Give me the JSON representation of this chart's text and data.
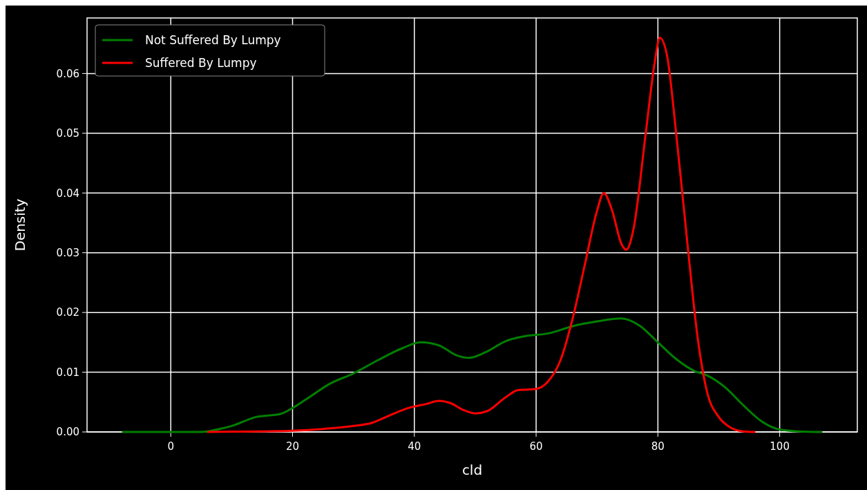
{
  "chart_data": {
    "type": "line",
    "xlabel": "cld",
    "ylabel": "Density",
    "xlim": [
      -13.75,
      112.75
    ],
    "xticks": [
      0,
      20,
      40,
      60,
      80,
      100
    ],
    "ylim": [
      0,
      0.0693
    ],
    "yticks": [
      {
        "value": 0,
        "label": "0.00"
      },
      {
        "value": 0.01,
        "label": "0.01"
      },
      {
        "value": 0.02,
        "label": "0.02"
      },
      {
        "value": 0.03,
        "label": "0.03"
      },
      {
        "value": 0.04,
        "label": "0.04"
      },
      {
        "value": 0.05,
        "label": "0.05"
      },
      {
        "value": 0.06,
        "label": "0.06"
      }
    ],
    "grid": true,
    "legend": "top left",
    "marker": "none",
    "line_style": "solid",
    "series": [
      {
        "name": "Not Suffered By Lumpy",
        "color": "#008000",
        "x": [
          -8,
          5,
          8,
          10,
          14,
          18,
          20,
          23,
          26,
          30,
          34,
          38,
          41,
          44,
          47,
          49,
          52,
          55,
          58,
          62,
          66,
          70,
          74,
          77,
          80,
          83,
          86,
          88,
          91,
          94,
          97,
          100,
          103,
          107
        ],
        "values": [
          0,
          0,
          0.0005,
          0.001,
          0.0025,
          0.003,
          0.004,
          0.006,
          0.008,
          0.0098,
          0.012,
          0.014,
          0.015,
          0.0145,
          0.0128,
          0.0124,
          0.0135,
          0.0152,
          0.016,
          0.0165,
          0.0177,
          0.0185,
          0.019,
          0.0178,
          0.015,
          0.0122,
          0.0102,
          0.0095,
          0.0075,
          0.0045,
          0.0018,
          0.0004,
          0.0001,
          0
        ]
      },
      {
        "name": "Suffered By Lumpy",
        "color": "#ff0000",
        "x": [
          6,
          15,
          20,
          25,
          30,
          33,
          36,
          39,
          42,
          44,
          46,
          48,
          50,
          52,
          55,
          57,
          60,
          62,
          64,
          66,
          68,
          70,
          71.1,
          72.5,
          74,
          74.8,
          76,
          78,
          79.5,
          80.3,
          81.5,
          83,
          85,
          86.5,
          88,
          90,
          92,
          94,
          96
        ],
        "values": [
          0,
          0.0001,
          0.0002,
          0.0005,
          0.001,
          0.0015,
          0.0028,
          0.004,
          0.0047,
          0.0052,
          0.0048,
          0.0037,
          0.0031,
          0.0035,
          0.0058,
          0.007,
          0.0072,
          0.0085,
          0.012,
          0.019,
          0.028,
          0.037,
          0.04,
          0.037,
          0.0315,
          0.0305,
          0.034,
          0.05,
          0.062,
          0.066,
          0.063,
          0.05,
          0.03,
          0.016,
          0.007,
          0.0025,
          0.0007,
          0.0001,
          0
        ]
      }
    ]
  }
}
